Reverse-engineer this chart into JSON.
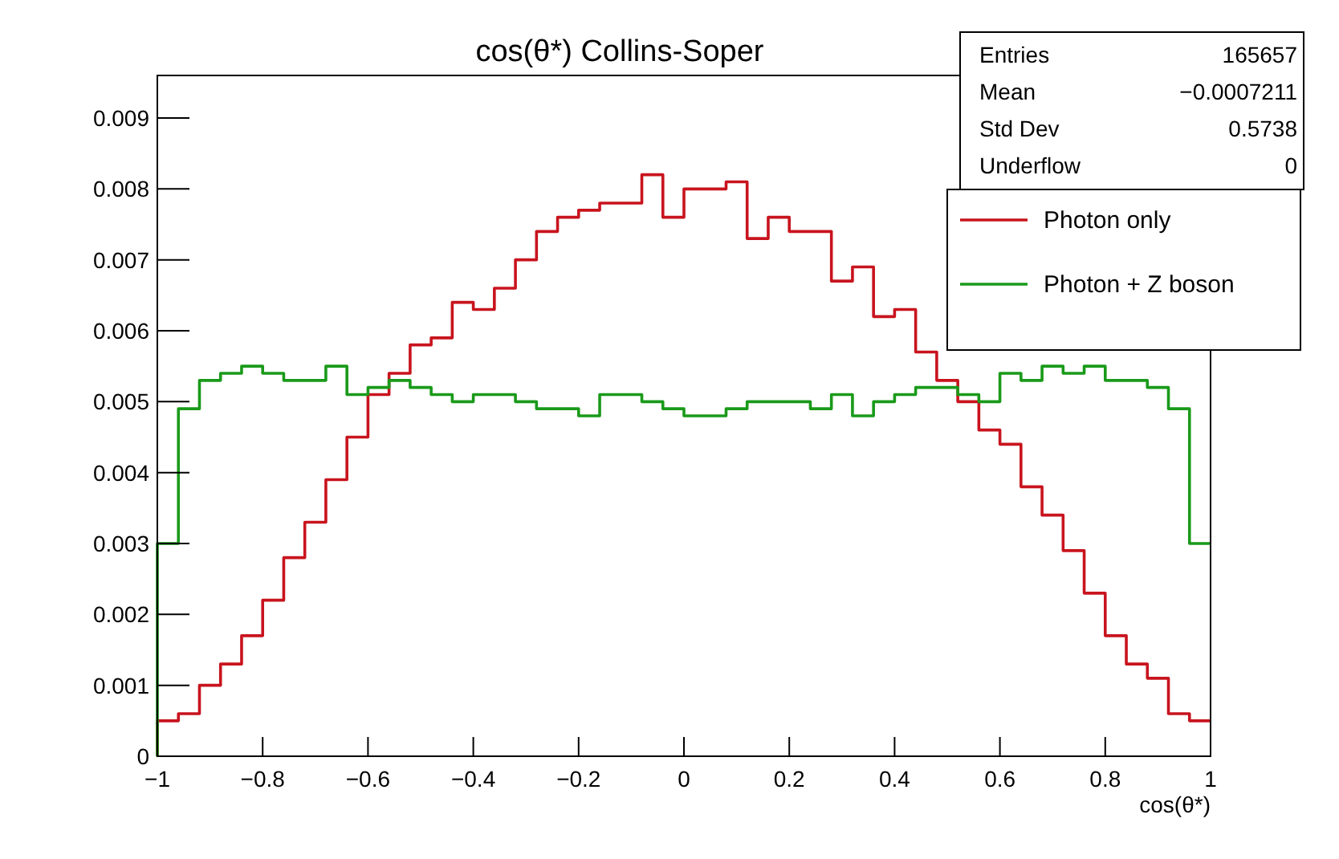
{
  "chart_data": {
    "type": "histogram",
    "title": "cos(θ*) Collins-Soper",
    "xlabel": "cos(θ*)",
    "bins": [
      -1,
      -0.96,
      -0.92,
      -0.88,
      -0.84,
      -0.8,
      -0.76,
      -0.72,
      -0.68,
      -0.64,
      -0.6,
      -0.56,
      -0.52,
      -0.48,
      -0.44,
      -0.4,
      -0.36,
      -0.32,
      -0.28,
      -0.24,
      -0.2,
      -0.16,
      -0.12,
      -0.08,
      -0.04,
      0,
      0.04,
      0.08,
      0.12,
      0.16,
      0.2,
      0.24,
      0.28,
      0.32,
      0.36,
      0.4,
      0.44,
      0.48,
      0.52,
      0.56,
      0.6,
      0.64,
      0.68,
      0.72,
      0.76,
      0.8,
      0.84,
      0.88,
      0.92,
      0.96,
      1
    ],
    "series": [
      {
        "name": "Photon only",
        "color": "#c8141e",
        "values": [
          0.0005,
          0.0006,
          0.001,
          0.0013,
          0.0017,
          0.0022,
          0.0028,
          0.0033,
          0.0039,
          0.0045,
          0.0051,
          0.0054,
          0.0058,
          0.0059,
          0.0064,
          0.0063,
          0.0066,
          0.007,
          0.0074,
          0.0076,
          0.0077,
          0.0078,
          0.0078,
          0.0082,
          0.0076,
          0.008,
          0.008,
          0.0081,
          0.0073,
          0.0076,
          0.0074,
          0.0074,
          0.0067,
          0.0069,
          0.0062,
          0.0063,
          0.0057,
          0.0053,
          0.005,
          0.0046,
          0.0044,
          0.0038,
          0.0034,
          0.0029,
          0.0023,
          0.0017,
          0.0013,
          0.0011,
          0.0006,
          0.0005
        ]
      },
      {
        "name": "Photon + Z boson",
        "color": "#1a9a1a",
        "values": [
          0.003,
          0.0049,
          0.0053,
          0.0054,
          0.0055,
          0.0054,
          0.0053,
          0.0053,
          0.0055,
          0.0051,
          0.0052,
          0.0053,
          0.0052,
          0.0051,
          0.005,
          0.0051,
          0.0051,
          0.005,
          0.0049,
          0.0049,
          0.0048,
          0.0051,
          0.0051,
          0.005,
          0.0049,
          0.0048,
          0.0048,
          0.0049,
          0.005,
          0.005,
          0.005,
          0.0049,
          0.0051,
          0.0048,
          0.005,
          0.0051,
          0.0052,
          0.0052,
          0.0051,
          0.005,
          0.0054,
          0.0053,
          0.0055,
          0.0054,
          0.0055,
          0.0053,
          0.0053,
          0.0052,
          0.0049,
          0.003
        ]
      }
    ],
    "xlim": [
      -1,
      1
    ],
    "ylim": [
      0,
      0.0096
    ],
    "xticks": [
      {
        "value": -1,
        "label": "−1"
      },
      {
        "value": -0.8,
        "label": "−0.8"
      },
      {
        "value": -0.6,
        "label": "−0.6"
      },
      {
        "value": -0.4,
        "label": "−0.4"
      },
      {
        "value": -0.2,
        "label": "−0.2"
      },
      0,
      0.2,
      0.4,
      0.6,
      0.8,
      1
    ],
    "yticks": [
      0,
      0.001,
      0.002,
      0.003,
      0.004,
      0.005,
      0.006,
      0.007,
      0.008,
      0.009
    ],
    "legend": "top right",
    "grid": false,
    "annotations": [
      "Entries",
      "165657",
      "Mean",
      "−0.0007211",
      "Std Dev",
      "0.5738",
      "Underflow",
      "0"
    ]
  }
}
